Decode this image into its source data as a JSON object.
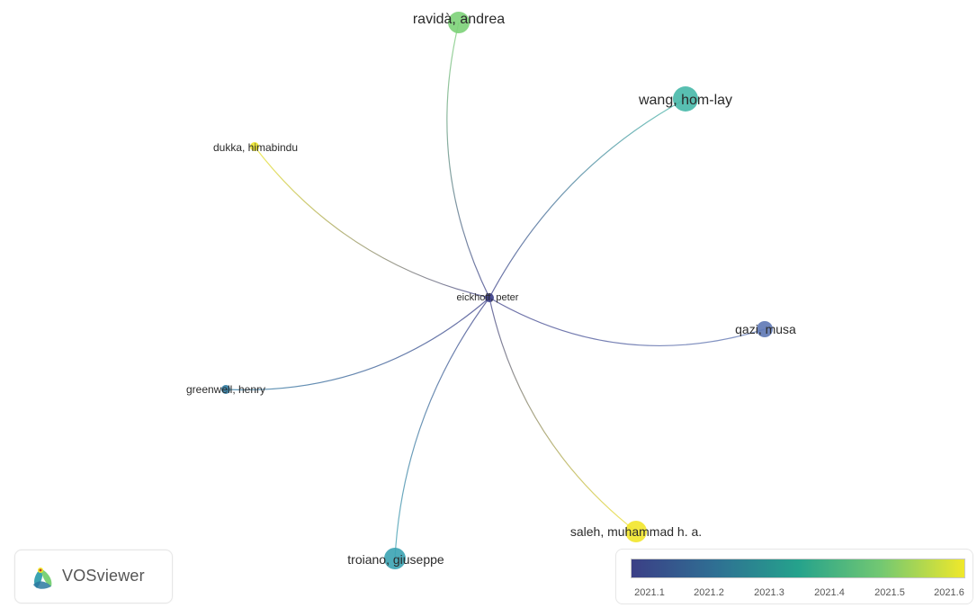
{
  "network": {
    "nodes": [
      {
        "id": "eickhoff",
        "label": "eickhoff, peter",
        "color": "#3a3d87"
      },
      {
        "id": "ravida",
        "label": "ravidà, andrea",
        "color": "#7cd178"
      },
      {
        "id": "wang",
        "label": "wang, hom-lay",
        "color": "#46b8a8"
      },
      {
        "id": "dukka",
        "label": "dukka, himabindu",
        "color": "#ece52a"
      },
      {
        "id": "qazi",
        "label": "qazi, musa",
        "color": "#5e78b5"
      },
      {
        "id": "greenwell",
        "label": "greenwell, henry",
        "color": "#2b79a0"
      },
      {
        "id": "troiano",
        "label": "troiano, giuseppe",
        "color": "#3ba3b2"
      },
      {
        "id": "saleh",
        "label": "saleh, muhammad h. a.",
        "color": "#f2e52a"
      }
    ],
    "links": [
      {
        "from": "eickhoff",
        "to": "ravida"
      },
      {
        "from": "eickhoff",
        "to": "wang"
      },
      {
        "from": "eickhoff",
        "to": "dukka"
      },
      {
        "from": "eickhoff",
        "to": "qazi"
      },
      {
        "from": "eickhoff",
        "to": "greenwell"
      },
      {
        "from": "eickhoff",
        "to": "troiano"
      },
      {
        "from": "eickhoff",
        "to": "saleh"
      }
    ]
  },
  "logo": {
    "text": "VOSviewer"
  },
  "color_scale": {
    "ticks": [
      "2021.1",
      "2021.2",
      "2021.3",
      "2021.4",
      "2021.5",
      "2021.6"
    ],
    "colors": [
      "#3b3f86",
      "#2f6f93",
      "#25a28c",
      "#73c872",
      "#f0e82a"
    ]
  }
}
